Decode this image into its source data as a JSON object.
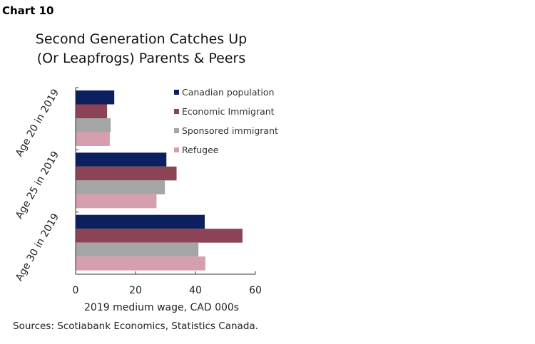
{
  "chart_label": "Chart 10",
  "chart_data": {
    "type": "bar",
    "orientation": "horizontal",
    "title": [
      "Second Generation Catches Up",
      "(Or Leapfrogs) Parents & Peers"
    ],
    "categories": [
      "Age 20 in 2019",
      "Age 25 in 2019",
      "Age 30 in 2019"
    ],
    "series": [
      {
        "name": "Canadian population",
        "color": "#0c1f5e",
        "values": [
          12.9,
          30.3,
          43.1
        ]
      },
      {
        "name": "Economic Immigrant",
        "color": "#8c4356",
        "values": [
          10.5,
          33.7,
          55.7
        ]
      },
      {
        "name": "Sponsored immigrant",
        "color": "#a5a5a5",
        "values": [
          11.7,
          29.8,
          41.0
        ]
      },
      {
        "name": "Refugee",
        "color": "#d59fae",
        "values": [
          11.4,
          27.0,
          43.3
        ]
      }
    ],
    "xlabel": "2019 medium wage, CAD 000s",
    "xlim": [
      0,
      60
    ],
    "xticks": [
      "0",
      "20",
      "40",
      "60"
    ],
    "legend": "top-right",
    "grid": false
  },
  "source": "Sources: Scotiabank Economics, Statistics Canada."
}
